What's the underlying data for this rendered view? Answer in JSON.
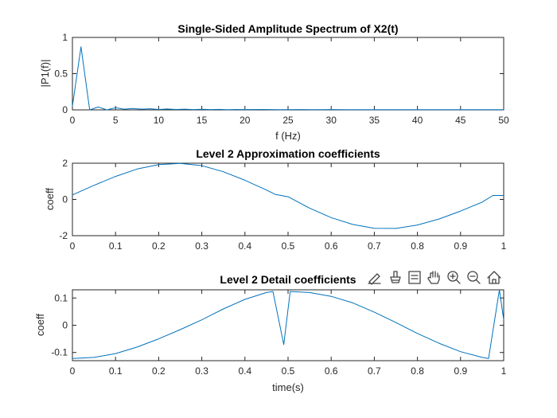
{
  "colors": {
    "line": "#0072BD",
    "axis": "#262626"
  },
  "toolbar": {
    "icons": [
      "edit-brush-icon",
      "data-tips-icon",
      "legend-icon",
      "pan-hand-icon",
      "zoom-in-icon",
      "zoom-out-icon",
      "home-restore-icon"
    ]
  },
  "chart_data": [
    {
      "type": "line",
      "title": "Single-Sided Amplitude Spectrum of X2(t)",
      "xlabel": "f (Hz)",
      "ylabel": "|P1(f)|",
      "xlim": [
        0,
        50
      ],
      "ylim": [
        0,
        1
      ],
      "xticks": [
        "0",
        "5",
        "10",
        "15",
        "20",
        "25",
        "30",
        "35",
        "40",
        "45",
        "50"
      ],
      "yticks": [
        "0",
        "0.5",
        "1"
      ],
      "grid": false,
      "series": [
        {
          "x": [
            0,
            1,
            2,
            3,
            4,
            5,
            6,
            7,
            8,
            9,
            10,
            11,
            12,
            13,
            14,
            15,
            16,
            17,
            18,
            19,
            20,
            22,
            24,
            26,
            28,
            30,
            32,
            34,
            36,
            38,
            40,
            42,
            44,
            46,
            48,
            50
          ],
          "values": [
            0.05,
            0.87,
            0.0,
            0.04,
            0.0,
            0.03,
            0.01,
            0.02,
            0.01,
            0.015,
            0.005,
            0.012,
            0.005,
            0.01,
            0.004,
            0.008,
            0.004,
            0.007,
            0.003,
            0.006,
            0.004,
            0.005,
            0.003,
            0.004,
            0.003,
            0.004,
            0.003,
            0.003,
            0.002,
            0.003,
            0.002,
            0.003,
            0.002,
            0.002,
            0.002,
            0.002
          ]
        }
      ]
    },
    {
      "type": "line",
      "title": "Level 2 Approximation coefficients",
      "xlabel": "",
      "ylabel": "coeff",
      "xlim": [
        0,
        1
      ],
      "ylim": [
        -2,
        2
      ],
      "xticks": [
        "0",
        "0.1",
        "0.2",
        "0.3",
        "0.4",
        "0.5",
        "0.6",
        "0.7",
        "0.8",
        "0.9",
        "1"
      ],
      "yticks": [
        "-2",
        "0",
        "2"
      ],
      "grid": false,
      "series": [
        {
          "x": [
            0,
            0.05,
            0.1,
            0.15,
            0.2,
            0.25,
            0.3,
            0.35,
            0.4,
            0.45,
            0.47,
            0.5,
            0.55,
            0.6,
            0.65,
            0.7,
            0.75,
            0.8,
            0.85,
            0.9,
            0.95,
            0.975,
            1.0
          ],
          "values": [
            0.25,
            0.78,
            1.27,
            1.68,
            1.92,
            1.99,
            1.87,
            1.53,
            1.06,
            0.52,
            0.28,
            0.15,
            -0.48,
            -1.0,
            -1.38,
            -1.59,
            -1.6,
            -1.41,
            -1.08,
            -0.64,
            -0.15,
            0.22,
            0.22
          ]
        }
      ]
    },
    {
      "type": "line",
      "title": "Level 2 Detail coefficients",
      "xlabel": "time(s)",
      "ylabel": "coeff",
      "xlim": [
        0,
        1
      ],
      "ylim": [
        -0.13,
        0.13
      ],
      "xticks": [
        "0",
        "0.1",
        "0.2",
        "0.3",
        "0.4",
        "0.5",
        "0.6",
        "0.7",
        "0.8",
        "0.9",
        "1"
      ],
      "yticks": [
        "-0.1",
        "0",
        "0.1"
      ],
      "grid": false,
      "series": [
        {
          "x": [
            0,
            0.05,
            0.1,
            0.15,
            0.2,
            0.25,
            0.3,
            0.35,
            0.4,
            0.45,
            0.465,
            0.49,
            0.505,
            0.55,
            0.6,
            0.65,
            0.7,
            0.75,
            0.8,
            0.85,
            0.9,
            0.95,
            0.965,
            0.99,
            1.0
          ],
          "values": [
            -0.122,
            -0.118,
            -0.104,
            -0.08,
            -0.05,
            -0.016,
            0.02,
            0.06,
            0.095,
            0.12,
            0.124,
            -0.071,
            0.124,
            0.12,
            0.106,
            0.082,
            0.048,
            0.01,
            -0.03,
            -0.066,
            -0.097,
            -0.118,
            -0.122,
            0.136,
            0.02
          ]
        }
      ]
    }
  ]
}
